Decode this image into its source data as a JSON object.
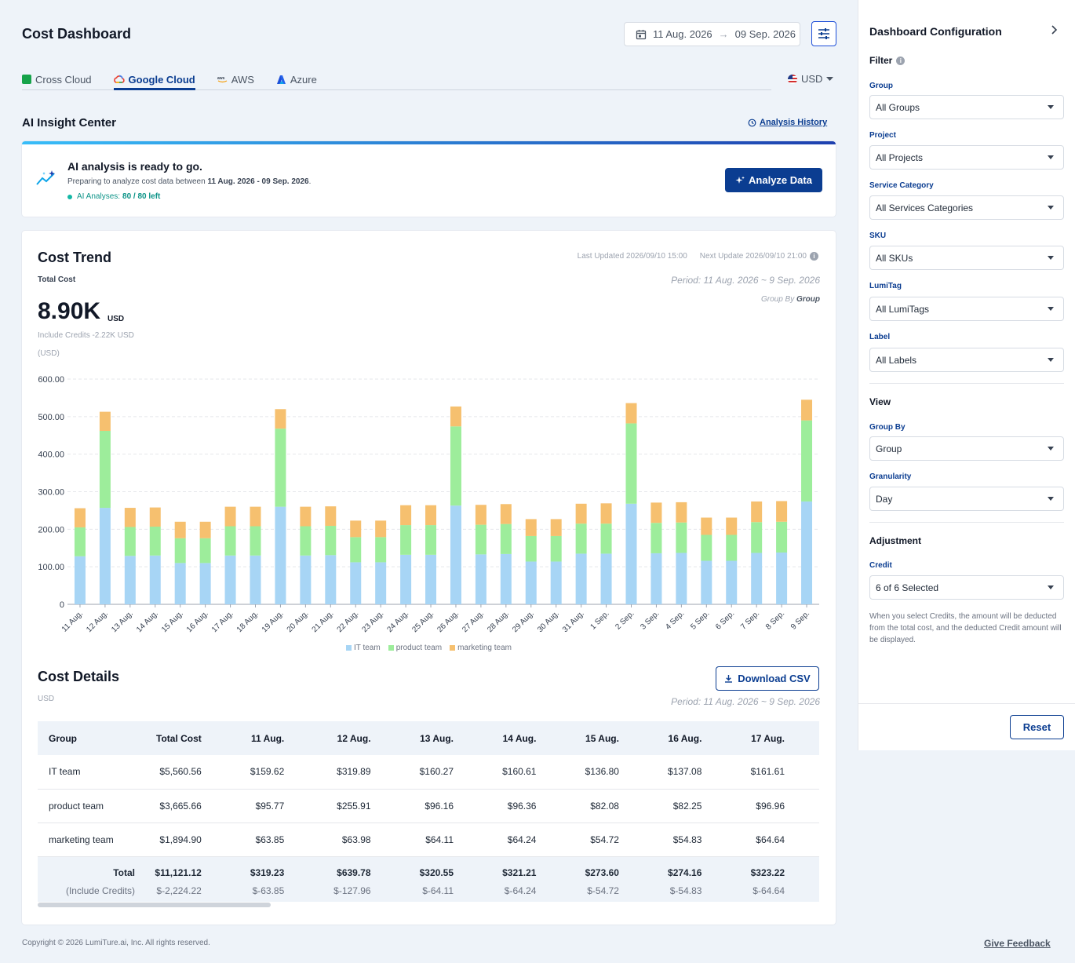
{
  "header": {
    "title": "Cost Dashboard",
    "date_start": "11 Aug. 2026",
    "date_end": "09 Sep. 2026",
    "date_arrow": "→"
  },
  "tabs": [
    {
      "label": "Cross Cloud",
      "icon": "cube-icon",
      "color": "#16a34a"
    },
    {
      "label": "Google Cloud",
      "icon": "google-cloud-icon",
      "color": "#ea4335"
    },
    {
      "label": "AWS",
      "icon": "aws-icon",
      "color": "#f59e0b"
    },
    {
      "label": "Azure",
      "icon": "azure-icon",
      "color": "#2563eb"
    }
  ],
  "currency": "USD",
  "ai_insight": {
    "section_title": "AI Insight Center",
    "history_label": "Analysis History",
    "title": "AI analysis is ready to go.",
    "sub_prefix": "Preparing to analyze cost data between",
    "sub_range": "11 Aug. 2026 - 09 Sep. 2026",
    "sub_suffix": ".",
    "count_label": "AI Analyses:",
    "count_value": "80 / 80 left",
    "button_label": "Analyze Data"
  },
  "cost_trend": {
    "title": "Cost Trend",
    "last_updated": "Last Updated 2026/09/10 15:00",
    "next_update": "Next Update 2026/09/10 21:00",
    "total_label": "Total Cost",
    "period": "Period: 11 Aug. 2026 ~ 9 Sep. 2026",
    "group_by_prefix": "Group By",
    "group_by_value": "Group",
    "big_value": "8.90K",
    "big_unit": "USD",
    "credits": "Include Credits -2.22K USD",
    "unit": "(USD)"
  },
  "chart_data": {
    "type": "bar",
    "stacked": true,
    "ylim": [
      0,
      600
    ],
    "yticks": [
      "0",
      "100.00",
      "200.00",
      "300.00",
      "400.00",
      "500.00",
      "600.00"
    ],
    "ytick_values": [
      0,
      100,
      200,
      300,
      400,
      500,
      600
    ],
    "categories": [
      "11 Aug.",
      "12 Aug.",
      "13 Aug.",
      "14 Aug.",
      "15 Aug.",
      "16 Aug.",
      "17 Aug.",
      "18 Aug.",
      "19 Aug.",
      "20 Aug.",
      "21 Aug.",
      "22 Aug.",
      "23 Aug.",
      "24 Aug.",
      "25 Aug.",
      "26 Aug.",
      "27 Aug.",
      "28 Aug.",
      "29 Aug.",
      "30 Aug.",
      "31 Aug.",
      "1 Sep.",
      "2 Sep.",
      "3 Sep.",
      "4 Sep.",
      "5 Sep.",
      "6 Sep.",
      "7 Sep.",
      "8 Sep.",
      "9 Sep."
    ],
    "series": [
      {
        "name": "IT team",
        "color": "#a7d5f5",
        "values": [
          128,
          257,
          129,
          130,
          110,
          110,
          130,
          130,
          260,
          130,
          131,
          112,
          112,
          132,
          132,
          263,
          133,
          134,
          114,
          114,
          135,
          135,
          268,
          136,
          137,
          116,
          116,
          137,
          138,
          274
        ]
      },
      {
        "name": "product team",
        "color": "#9ded9b",
        "values": [
          77,
          205,
          77,
          77,
          66,
          66,
          78,
          78,
          208,
          78,
          78,
          67,
          67,
          79,
          79,
          211,
          79,
          80,
          68,
          68,
          80,
          80,
          214,
          81,
          81,
          69,
          69,
          82,
          82,
          216
        ]
      },
      {
        "name": "marketing team",
        "color": "#f6c06f",
        "values": [
          51,
          51,
          51,
          51,
          44,
          44,
          52,
          52,
          52,
          52,
          52,
          44,
          44,
          53,
          53,
          53,
          53,
          53,
          45,
          45,
          53,
          54,
          54,
          54,
          54,
          46,
          46,
          55,
          55,
          55
        ]
      }
    ]
  },
  "cost_details": {
    "title": "Cost Details",
    "unit": "USD",
    "download_label": "Download CSV",
    "period": "Period: 11 Aug. 2026 ~ 9 Sep. 2026",
    "columns": [
      "Group",
      "Total Cost",
      "11 Aug.",
      "12 Aug.",
      "13 Aug.",
      "14 Aug.",
      "15 Aug.",
      "16 Aug.",
      "17 Aug."
    ],
    "rows": [
      [
        "IT team",
        "$5,560.56",
        "$159.62",
        "$319.89",
        "$160.27",
        "$160.61",
        "$136.80",
        "$137.08",
        "$161.61"
      ],
      [
        "product team",
        "$3,665.66",
        "$95.77",
        "$255.91",
        "$96.16",
        "$96.36",
        "$82.08",
        "$82.25",
        "$96.96"
      ],
      [
        "marketing team",
        "$1,894.90",
        "$63.85",
        "$63.98",
        "$64.11",
        "$64.24",
        "$54.72",
        "$54.83",
        "$64.64"
      ]
    ],
    "total": [
      "Total",
      "$11,121.12",
      "$319.23",
      "$639.78",
      "$320.55",
      "$321.21",
      "$273.60",
      "$274.16",
      "$323.22"
    ],
    "credits": [
      "(Include Credits)",
      "$-2,224.22",
      "$-63.85",
      "$-127.96",
      "$-64.11",
      "$-64.24",
      "$-54.72",
      "$-54.83",
      "$-64.64"
    ]
  },
  "footer": {
    "copyright": "Copyright © 2026 LumiTure.ai, Inc. All rights reserved.",
    "feedback": "Give Feedback"
  },
  "sidebar": {
    "title": "Dashboard Configuration",
    "filter_label": "Filter",
    "group_label": "Group",
    "group_value": "All Groups",
    "project_label": "Project",
    "project_value": "All Projects",
    "service_label": "Service Category",
    "service_value": "All Services Categories",
    "sku_label": "SKU",
    "sku_value": "All SKUs",
    "lumitag_label": "LumiTag",
    "lumitag_value": "All LumiTags",
    "label_label": "Label",
    "label_value": "All Labels",
    "view_label": "View",
    "groupby_label": "Group By",
    "groupby_value": "Group",
    "granularity_label": "Granularity",
    "granularity_value": "Day",
    "adjustment_label": "Adjustment",
    "credit_label": "Credit",
    "credit_value": "6 of 6 Selected",
    "note": "When you select Credits, the amount will be deducted from the total cost, and the deducted Credit amount will be displayed.",
    "reset_label": "Reset"
  }
}
